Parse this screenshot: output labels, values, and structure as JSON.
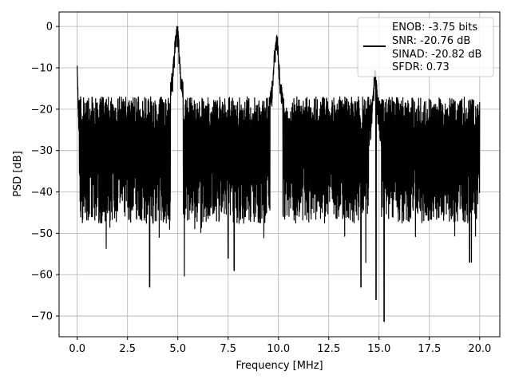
{
  "chart_data": {
    "type": "line",
    "title": "",
    "xlabel": "Frequency [MHz]",
    "ylabel": "PSD [dB]",
    "xlim": [
      -0.9,
      21.0
    ],
    "ylim": [
      -75,
      3.5
    ],
    "xticks": [
      0.0,
      2.5,
      5.0,
      7.5,
      10.0,
      12.5,
      15.0,
      17.5,
      20.0
    ],
    "xtick_labels": [
      "0.0",
      "2.5",
      "5.0",
      "7.5",
      "10.0",
      "12.5",
      "15.0",
      "17.5",
      "20.0"
    ],
    "yticks": [
      0,
      -10,
      -20,
      -30,
      -40,
      -50,
      -60,
      -70
    ],
    "ytick_labels": [
      "0",
      "−10",
      "−20",
      "−30",
      "−40",
      "−50",
      "−60",
      "−70"
    ],
    "grid": true,
    "legend_position": "top-right",
    "series": [
      {
        "color": "#000000",
        "noise_floor": {
          "upper_dB": -21,
          "lower_dB": -42,
          "min_dB": -71.3
        },
        "peaks": [
          {
            "x": 0.0,
            "y": -9.5
          },
          {
            "x": 4.95,
            "y": 0.0
          },
          {
            "x": 9.9,
            "y": -2.5
          },
          {
            "x": 14.8,
            "y": -11.5
          }
        ],
        "notable_minima": [
          {
            "x": 3.6,
            "y": -63
          },
          {
            "x": 7.5,
            "y": -56
          },
          {
            "x": 7.8,
            "y": -59
          },
          {
            "x": 14.1,
            "y": -63
          },
          {
            "x": 14.85,
            "y": -66
          },
          {
            "x": 15.25,
            "y": -71.3
          },
          {
            "x": 19.5,
            "y": -57
          }
        ]
      }
    ],
    "legend": {
      "lines": [
        "ENOB: -3.75 bits",
        "SNR: -20.76 dB",
        "SINAD: -20.82 dB",
        "SFDR: 0.73"
      ]
    }
  }
}
